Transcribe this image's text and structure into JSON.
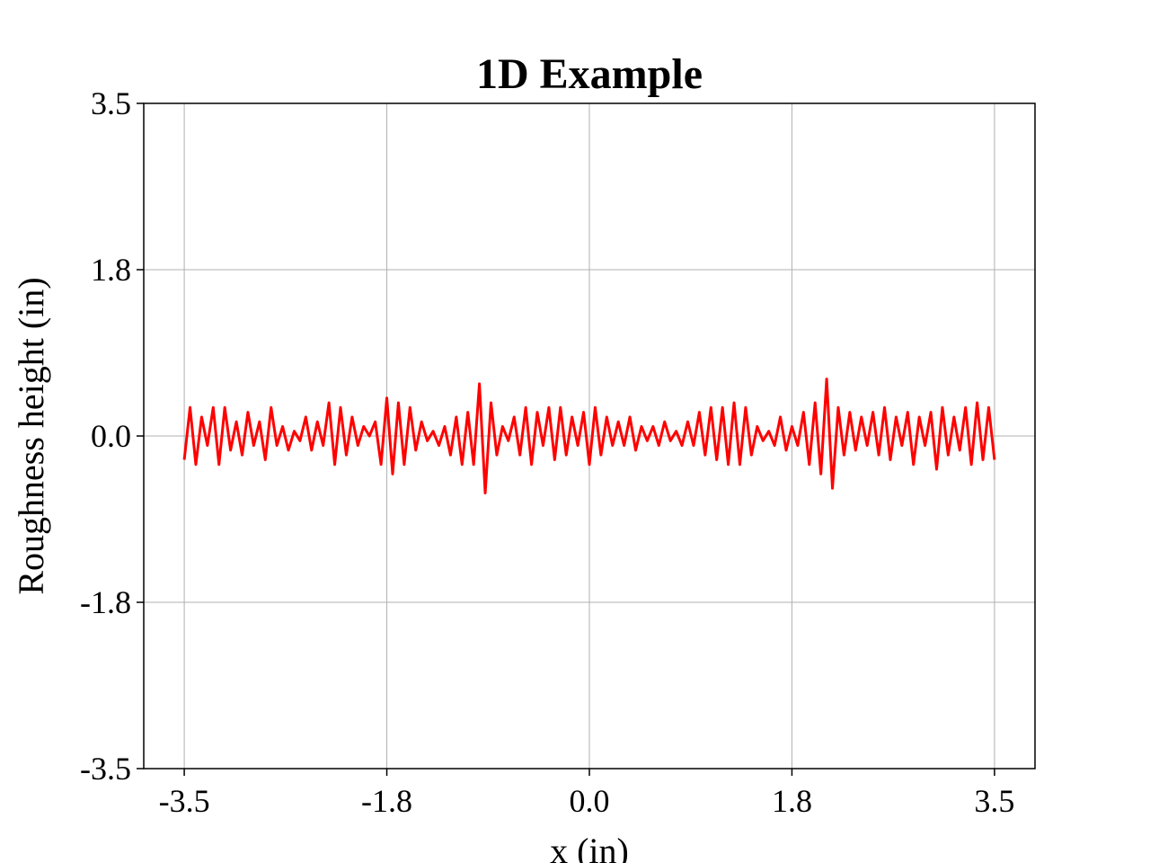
{
  "chart_data": {
    "type": "line",
    "title": "1D Example",
    "x_label": "x (in)",
    "y_label": "Roughness height (in)",
    "color": "#ff0000",
    "grid": true,
    "xlim": [
      -3.85,
      3.85
    ],
    "ylim": [
      -3.5,
      3.5
    ],
    "xticks": [
      {
        "value": -3.5,
        "label": "-3.5"
      },
      {
        "value": -1.75,
        "label": "-1.8"
      },
      {
        "value": 0,
        "label": "0.0"
      },
      {
        "value": 1.75,
        "label": "1.8"
      },
      {
        "value": 3.5,
        "label": "3.5"
      }
    ],
    "yticks": [
      {
        "value": -3.5,
        "label": "-3.5"
      },
      {
        "value": -1.75,
        "label": "-1.8"
      },
      {
        "value": 0,
        "label": "0.0"
      },
      {
        "value": 1.75,
        "label": "1.8"
      },
      {
        "value": 3.5,
        "label": "3.5"
      }
    ],
    "x": [
      -3.5,
      -3.45,
      -3.4,
      -3.35,
      -3.3,
      -3.25,
      -3.2,
      -3.15,
      -3.1,
      -3.05,
      -3.0,
      -2.95,
      -2.9,
      -2.85,
      -2.8,
      -2.75,
      -2.7,
      -2.65,
      -2.6,
      -2.55,
      -2.5,
      -2.45,
      -2.4,
      -2.35,
      -2.3,
      -2.25,
      -2.2,
      -2.15,
      -2.1,
      -2.05,
      -2.0,
      -1.95,
      -1.9,
      -1.85,
      -1.8,
      -1.75,
      -1.7,
      -1.65,
      -1.6,
      -1.55,
      -1.5,
      -1.45,
      -1.4,
      -1.35,
      -1.3,
      -1.25,
      -1.2,
      -1.15,
      -1.1,
      -1.05,
      -1.0,
      -0.95,
      -0.9,
      -0.85,
      -0.8,
      -0.75,
      -0.7,
      -0.65,
      -0.6,
      -0.55,
      -0.5,
      -0.45,
      -0.4,
      -0.35,
      -0.3,
      -0.25,
      -0.2,
      -0.15,
      -0.1,
      -0.05,
      0.0,
      0.05,
      0.1,
      0.15,
      0.2,
      0.25,
      0.3,
      0.35,
      0.4,
      0.45,
      0.5,
      0.55,
      0.6,
      0.65,
      0.7,
      0.75,
      0.8,
      0.85,
      0.9,
      0.95,
      1.0,
      1.05,
      1.1,
      1.15,
      1.2,
      1.25,
      1.3,
      1.35,
      1.4,
      1.45,
      1.5,
      1.55,
      1.6,
      1.65,
      1.7,
      1.75,
      1.8,
      1.85,
      1.9,
      1.95,
      2.0,
      2.05,
      2.1,
      2.15,
      2.2,
      2.25,
      2.3,
      2.35,
      2.4,
      2.45,
      2.5,
      2.55,
      2.6,
      2.65,
      2.7,
      2.75,
      2.8,
      2.85,
      2.9,
      2.95,
      3.0,
      3.05,
      3.1,
      3.15,
      3.2,
      3.25,
      3.3,
      3.35,
      3.4,
      3.45,
      3.5
    ],
    "values": [
      -0.25,
      0.3,
      -0.3,
      0.2,
      -0.1,
      0.3,
      -0.3,
      0.3,
      -0.15,
      0.15,
      -0.2,
      0.25,
      -0.1,
      0.15,
      -0.25,
      0.3,
      -0.1,
      0.1,
      -0.15,
      0.05,
      -0.05,
      0.2,
      -0.15,
      0.15,
      -0.1,
      0.35,
      -0.3,
      0.3,
      -0.2,
      0.2,
      -0.1,
      0.1,
      0.0,
      0.15,
      -0.3,
      0.4,
      -0.4,
      0.35,
      -0.3,
      0.3,
      -0.15,
      0.15,
      -0.05,
      0.05,
      -0.1,
      0.1,
      -0.2,
      0.2,
      -0.3,
      0.25,
      -0.3,
      0.55,
      -0.6,
      0.35,
      -0.2,
      0.1,
      -0.05,
      0.2,
      -0.2,
      0.3,
      -0.3,
      0.25,
      -0.1,
      0.3,
      -0.25,
      0.3,
      -0.2,
      0.2,
      -0.1,
      0.25,
      -0.3,
      0.3,
      -0.2,
      0.2,
      -0.1,
      0.15,
      -0.1,
      0.2,
      -0.15,
      0.1,
      -0.05,
      0.1,
      -0.1,
      0.15,
      -0.05,
      0.05,
      -0.1,
      0.15,
      -0.1,
      0.25,
      -0.2,
      0.3,
      -0.25,
      0.3,
      -0.3,
      0.35,
      -0.3,
      0.3,
      -0.2,
      0.1,
      -0.05,
      0.05,
      -0.1,
      0.2,
      -0.15,
      0.1,
      -0.1,
      0.25,
      -0.3,
      0.35,
      -0.4,
      0.6,
      -0.55,
      0.3,
      -0.2,
      0.25,
      -0.15,
      0.2,
      -0.1,
      0.25,
      -0.2,
      0.3,
      -0.25,
      0.2,
      -0.1,
      0.25,
      -0.3,
      0.2,
      -0.1,
      0.25,
      -0.35,
      0.3,
      -0.2,
      0.2,
      -0.15,
      0.3,
      -0.3,
      0.35,
      -0.25,
      0.3,
      -0.25
    ]
  }
}
